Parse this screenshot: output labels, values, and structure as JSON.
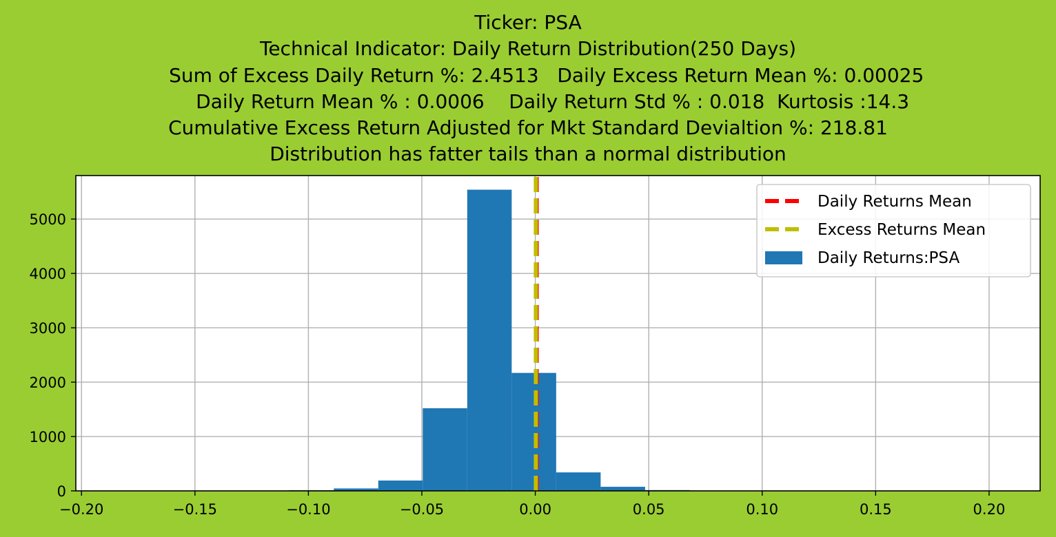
{
  "chart_data": {
    "type": "bar",
    "title_lines": [
      "Ticker: PSA",
      "Technical Indicator: Daily Return Distribution(250 Days)",
      "      Sum of Excess Daily Return %: 2.4513   Daily Excess Return Mean %: 0.00025",
      "        Daily Return Mean % : 0.0006    Daily Return Std % : 0.018  Kurtosis :14.3",
      "Cumulative Excess Return Adjusted for Mkt Standard Devialtion %: 218.81",
      "Distribution has fatter tails than a normal distribution"
    ],
    "xlim": [
      -0.2025,
      0.2225
    ],
    "ylim": [
      0,
      5800
    ],
    "xticks": [
      -0.2,
      -0.15,
      -0.1,
      -0.05,
      0.0,
      0.05,
      0.1,
      0.15,
      0.2
    ],
    "xtick_labels": [
      "−0.20",
      "−0.15",
      "−0.10",
      "−0.05",
      "0.00",
      "0.05",
      "0.10",
      "0.15",
      "0.20"
    ],
    "yticks": [
      0,
      1000,
      2000,
      3000,
      4000,
      5000
    ],
    "ytick_labels": [
      "0",
      "1000",
      "2000",
      "3000",
      "4000",
      "5000"
    ],
    "grid": true,
    "bin_edges": [
      -0.1084,
      -0.0888,
      -0.0692,
      -0.0496,
      -0.03,
      -0.0104,
      0.0092,
      0.0288,
      0.0484,
      0.068,
      0.0876
    ],
    "counts": [
      12,
      45,
      190,
      1520,
      5540,
      2170,
      340,
      75,
      15,
      5
    ],
    "series_color": "#1f77b4",
    "mean_lines": [
      {
        "name": "Daily Returns Mean",
        "x": 0.0006,
        "color": "#ff0000"
      },
      {
        "name": "Excess Returns Mean",
        "x": 0.00025,
        "color": "#bfbf00"
      }
    ],
    "legend": {
      "position": "upper right",
      "entries": [
        {
          "label": "Daily Returns Mean",
          "kind": "line",
          "color": "#ff0000"
        },
        {
          "label": "Excess Returns Mean",
          "kind": "line",
          "color": "#bfbf00"
        },
        {
          "label": "Daily Returns:PSA",
          "kind": "patch",
          "color": "#1f77b4"
        }
      ]
    }
  }
}
